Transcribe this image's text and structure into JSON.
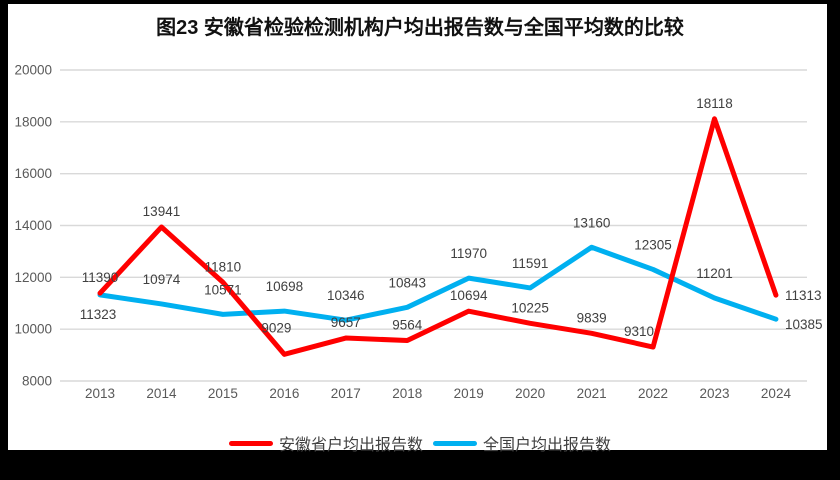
{
  "chart_data": {
    "type": "line",
    "title": "图23 安徽省检验检测机构户均出报告数与全国平均数的比较",
    "categories": [
      "2013",
      "2014",
      "2015",
      "2016",
      "2017",
      "2018",
      "2019",
      "2020",
      "2021",
      "2022",
      "2023",
      "2024"
    ],
    "series": [
      {
        "name": "安徽省户均出报告数",
        "color": "#FF0000",
        "values": [
          11390,
          13941,
          11810,
          9029,
          9657,
          9564,
          10694,
          10225,
          9839,
          9310,
          18118,
          11313
        ]
      },
      {
        "name": "全国户均出报告数",
        "color": "#00B0F0",
        "values": [
          11323,
          10974,
          10571,
          10698,
          10346,
          10843,
          11970,
          11591,
          13160,
          12305,
          11201,
          10385
        ]
      }
    ],
    "xlabel": "",
    "ylabel": "",
    "ylim": [
      8000,
      20000
    ],
    "ytick_step": 2000,
    "yticks": [
      "8000",
      "10000",
      "12000",
      "14000",
      "16000",
      "18000",
      "20000"
    ],
    "grid": true,
    "legend_position": "bottom",
    "gridline_color": "#D9D9D9",
    "axis_text_color": "#595959",
    "data_label_color": "#404040",
    "frame_color": "#000000",
    "plot_background": "#FFFFFF"
  }
}
